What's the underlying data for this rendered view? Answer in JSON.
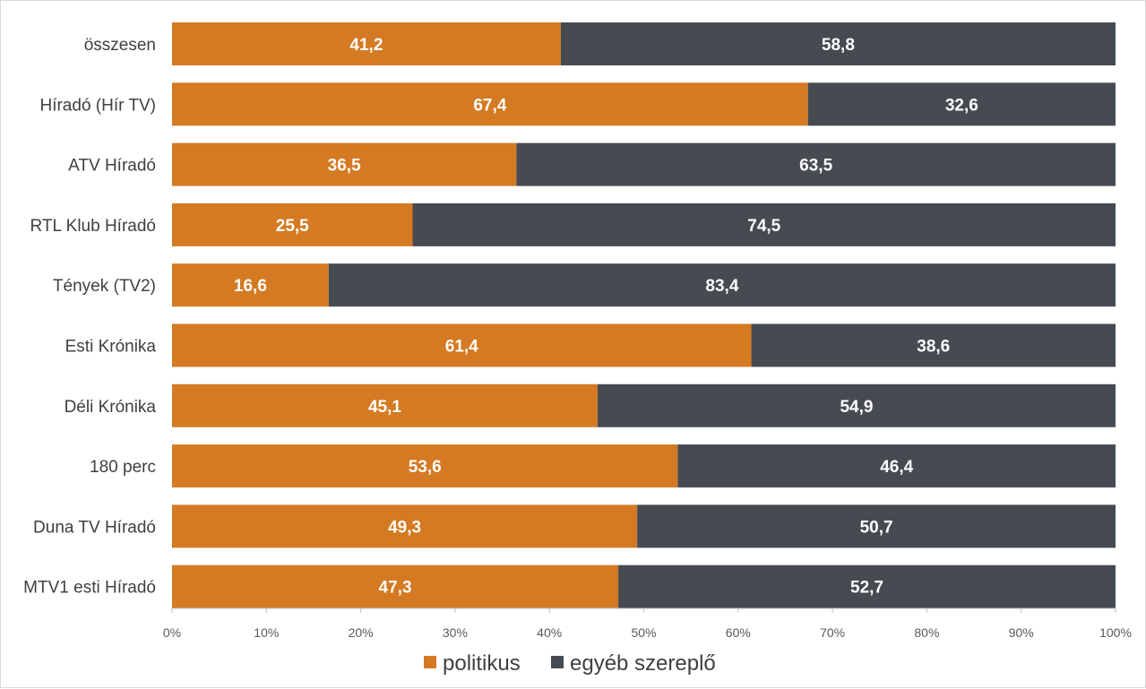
{
  "chart_data": {
    "type": "bar",
    "orientation": "horizontal",
    "stacked": "percent",
    "categories": [
      "összesen",
      "Híradó (Hír TV)",
      "ATV Híradó",
      "RTL Klub Híradó",
      "Tények (TV2)",
      "Esti Krónika",
      "Déli Krónika",
      "180 perc",
      "Duna TV Híradó",
      "MTV1 esti Híradó"
    ],
    "series": [
      {
        "name": "politikus",
        "color": "#d47a22",
        "values": [
          41.2,
          67.4,
          36.5,
          25.5,
          16.6,
          61.4,
          45.1,
          53.6,
          49.3,
          47.3
        ],
        "labels": [
          "41,2",
          "67,4",
          "36,5",
          "25,5",
          "16,6",
          "61,4",
          "45,1",
          "53,6",
          "49,3",
          "47,3"
        ]
      },
      {
        "name": "egyéb szereplő",
        "color": "#464b52",
        "values": [
          58.8,
          32.6,
          63.5,
          74.5,
          83.4,
          38.6,
          54.9,
          46.4,
          50.7,
          52.7
        ],
        "labels": [
          "58,8",
          "32,6",
          "63,5",
          "74,5",
          "83,4",
          "38,6",
          "54,9",
          "46,4",
          "50,7",
          "52,7"
        ]
      }
    ],
    "xlim": [
      0,
      100
    ],
    "xticks": [
      "0%",
      "10%",
      "20%",
      "30%",
      "40%",
      "50%",
      "60%",
      "70%",
      "80%",
      "90%",
      "100%"
    ],
    "title": "",
    "xlabel": "",
    "ylabel": "",
    "grid": false,
    "legend_position": "bottom"
  }
}
